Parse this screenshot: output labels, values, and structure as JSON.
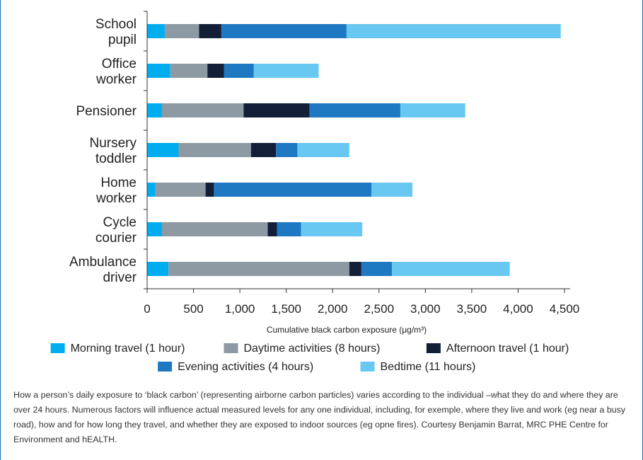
{
  "chart_data": {
    "type": "bar",
    "orientation": "horizontal",
    "stacked": true,
    "categories": [
      [
        "School",
        "pupil"
      ],
      [
        "Office",
        "worker"
      ],
      [
        "Pensioner"
      ],
      [
        "Nursery",
        "toddler"
      ],
      [
        "Home",
        "worker"
      ],
      [
        "Cycle",
        "courier"
      ],
      [
        "Ambulance",
        "driver"
      ]
    ],
    "series": [
      {
        "name": "Morning travel (1 hour)",
        "color": "#00aeef",
        "values": [
          190,
          250,
          160,
          340,
          90,
          160,
          230
        ]
      },
      {
        "name": "Daytime activities (8 hours)",
        "color": "#8e9aa3",
        "values": [
          370,
          400,
          880,
          780,
          540,
          1140,
          1950
        ]
      },
      {
        "name": "Afternoon travel (1 hour)",
        "color": "#121f36",
        "values": [
          240,
          180,
          710,
          270,
          90,
          100,
          130
        ]
      },
      {
        "name": "Evening activities (4 hours)",
        "color": "#1e78c2",
        "values": [
          1350,
          320,
          980,
          230,
          1700,
          260,
          330
        ]
      },
      {
        "name": "Bedtime (11 hours)",
        "color": "#68c8f2",
        "values": [
          2310,
          700,
          700,
          560,
          440,
          660,
          1270
        ]
      }
    ],
    "xlabel": "Cumulative black carbon exposure (μg/m³)",
    "xlim": [
      0,
      4500
    ],
    "xticks": [
      0,
      500,
      1000,
      1500,
      2000,
      2500,
      3000,
      3500,
      4000,
      4500
    ],
    "xtick_labels": [
      "0",
      "500",
      "1,000",
      "1,500",
      "2,000",
      "2,500",
      "3,000",
      "3,500",
      "4,000",
      "4,500"
    ],
    "legend_position": "bottom",
    "grid": false
  },
  "caption": "How a person’s daily exposure to ‘black carbon’ (representing airborne carbon particles) varies according to the individual –what they do and where they are over 24 hours. Numerous factors will influence actual measured levels for any one individual, including, for exemple, where they live and work (eg near a busy road), how and for how long they travel, and whether they are exposed to indoor sources (eg opne fires). Courtesy Benjamin Barrat, MRC PHE Centre for Environment and hEALTH."
}
